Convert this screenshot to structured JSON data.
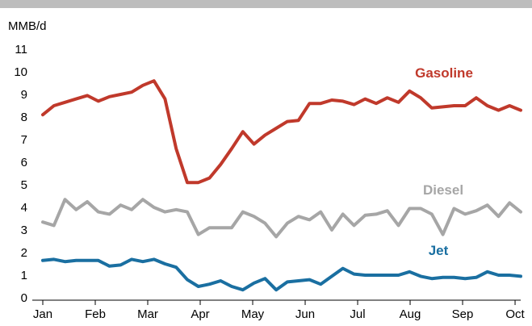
{
  "chart_data": {
    "type": "line",
    "unit_label": "MMB/d",
    "ylim": [
      0,
      11
    ],
    "y_ticks": [
      0,
      1,
      2,
      3,
      4,
      5,
      6,
      7,
      8,
      9,
      10,
      11
    ],
    "xlim": [
      0,
      51
    ],
    "x_tick_labels": [
      "Jan",
      "Feb",
      "Mar",
      "Apr",
      "May",
      "Jun",
      "Jul",
      "Aug",
      "Sep",
      "Oct"
    ],
    "x_tick_positions": [
      0,
      5.6,
      11.2,
      16.8,
      22.4,
      28,
      33.6,
      39.2,
      44.8,
      50.4
    ],
    "grid": false,
    "series": [
      {
        "name": "Gasoline",
        "color": "#c0392b",
        "values": [
          8.1,
          8.5,
          8.65,
          8.8,
          8.95,
          8.7,
          8.9,
          9.0,
          9.1,
          9.4,
          9.6,
          8.8,
          6.6,
          5.1,
          5.1,
          5.3,
          5.9,
          6.6,
          7.35,
          6.8,
          7.2,
          7.5,
          7.8,
          7.85,
          8.6,
          8.6,
          8.75,
          8.7,
          8.55,
          8.8,
          8.6,
          8.85,
          8.65,
          9.15,
          8.85,
          8.4,
          8.45,
          8.5,
          8.5,
          8.85,
          8.5,
          8.3,
          8.5,
          8.3
        ]
      },
      {
        "name": "Diesel",
        "color": "#a6a6a6",
        "values": [
          3.35,
          3.2,
          4.35,
          3.9,
          4.25,
          3.8,
          3.7,
          4.1,
          3.9,
          4.35,
          4.0,
          3.8,
          3.9,
          3.8,
          2.8,
          3.1,
          3.1,
          3.1,
          3.8,
          3.6,
          3.3,
          2.7,
          3.3,
          3.6,
          3.45,
          3.8,
          3.0,
          3.7,
          3.2,
          3.65,
          3.7,
          3.85,
          3.2,
          3.95,
          3.95,
          3.7,
          2.8,
          3.95,
          3.7,
          3.85,
          4.1,
          3.6,
          4.2,
          3.8
        ]
      },
      {
        "name": "Jet",
        "color": "#1a6fa1",
        "values": [
          1.65,
          1.7,
          1.6,
          1.65,
          1.65,
          1.65,
          1.4,
          1.45,
          1.7,
          1.6,
          1.7,
          1.5,
          1.35,
          0.8,
          0.5,
          0.6,
          0.75,
          0.5,
          0.35,
          0.65,
          0.85,
          0.35,
          0.7,
          0.75,
          0.8,
          0.6,
          0.95,
          1.3,
          1.05,
          1.0,
          1.0,
          1.0,
          1.0,
          1.15,
          0.95,
          0.85,
          0.9,
          0.9,
          0.85,
          0.9,
          1.15,
          1.0,
          1.0,
          0.95
        ]
      }
    ]
  }
}
